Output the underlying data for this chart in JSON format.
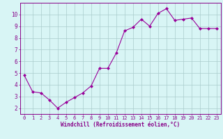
{
  "x": [
    0,
    1,
    2,
    3,
    4,
    5,
    6,
    7,
    8,
    9,
    10,
    11,
    12,
    13,
    14,
    15,
    16,
    17,
    18,
    19,
    20,
    21,
    22,
    23
  ],
  "y": [
    4.8,
    3.4,
    3.3,
    2.7,
    2.0,
    2.5,
    2.9,
    3.3,
    3.9,
    5.4,
    5.4,
    6.7,
    8.6,
    8.9,
    9.6,
    9.0,
    10.1,
    10.5,
    9.5,
    9.6,
    9.7,
    8.8,
    8.8,
    8.8
  ],
  "line_color": "#990099",
  "marker": "D",
  "marker_size": 2.0,
  "bg_color": "#d8f5f5",
  "grid_color": "#aacccc",
  "xlabel": "Windchill (Refroidissement éolien,°C)",
  "ylim": [
    1.5,
    11.0
  ],
  "xlim": [
    -0.5,
    23.5
  ],
  "yticks": [
    2,
    3,
    4,
    5,
    6,
    7,
    8,
    9,
    10
  ],
  "xticks": [
    0,
    1,
    2,
    3,
    4,
    5,
    6,
    7,
    8,
    9,
    10,
    11,
    12,
    13,
    14,
    15,
    16,
    17,
    18,
    19,
    20,
    21,
    22,
    23
  ],
  "tick_label_color": "#880088",
  "xlabel_color": "#880088",
  "border_color": "#880088",
  "tick_fontsize": 5.0,
  "xlabel_fontsize": 5.5
}
